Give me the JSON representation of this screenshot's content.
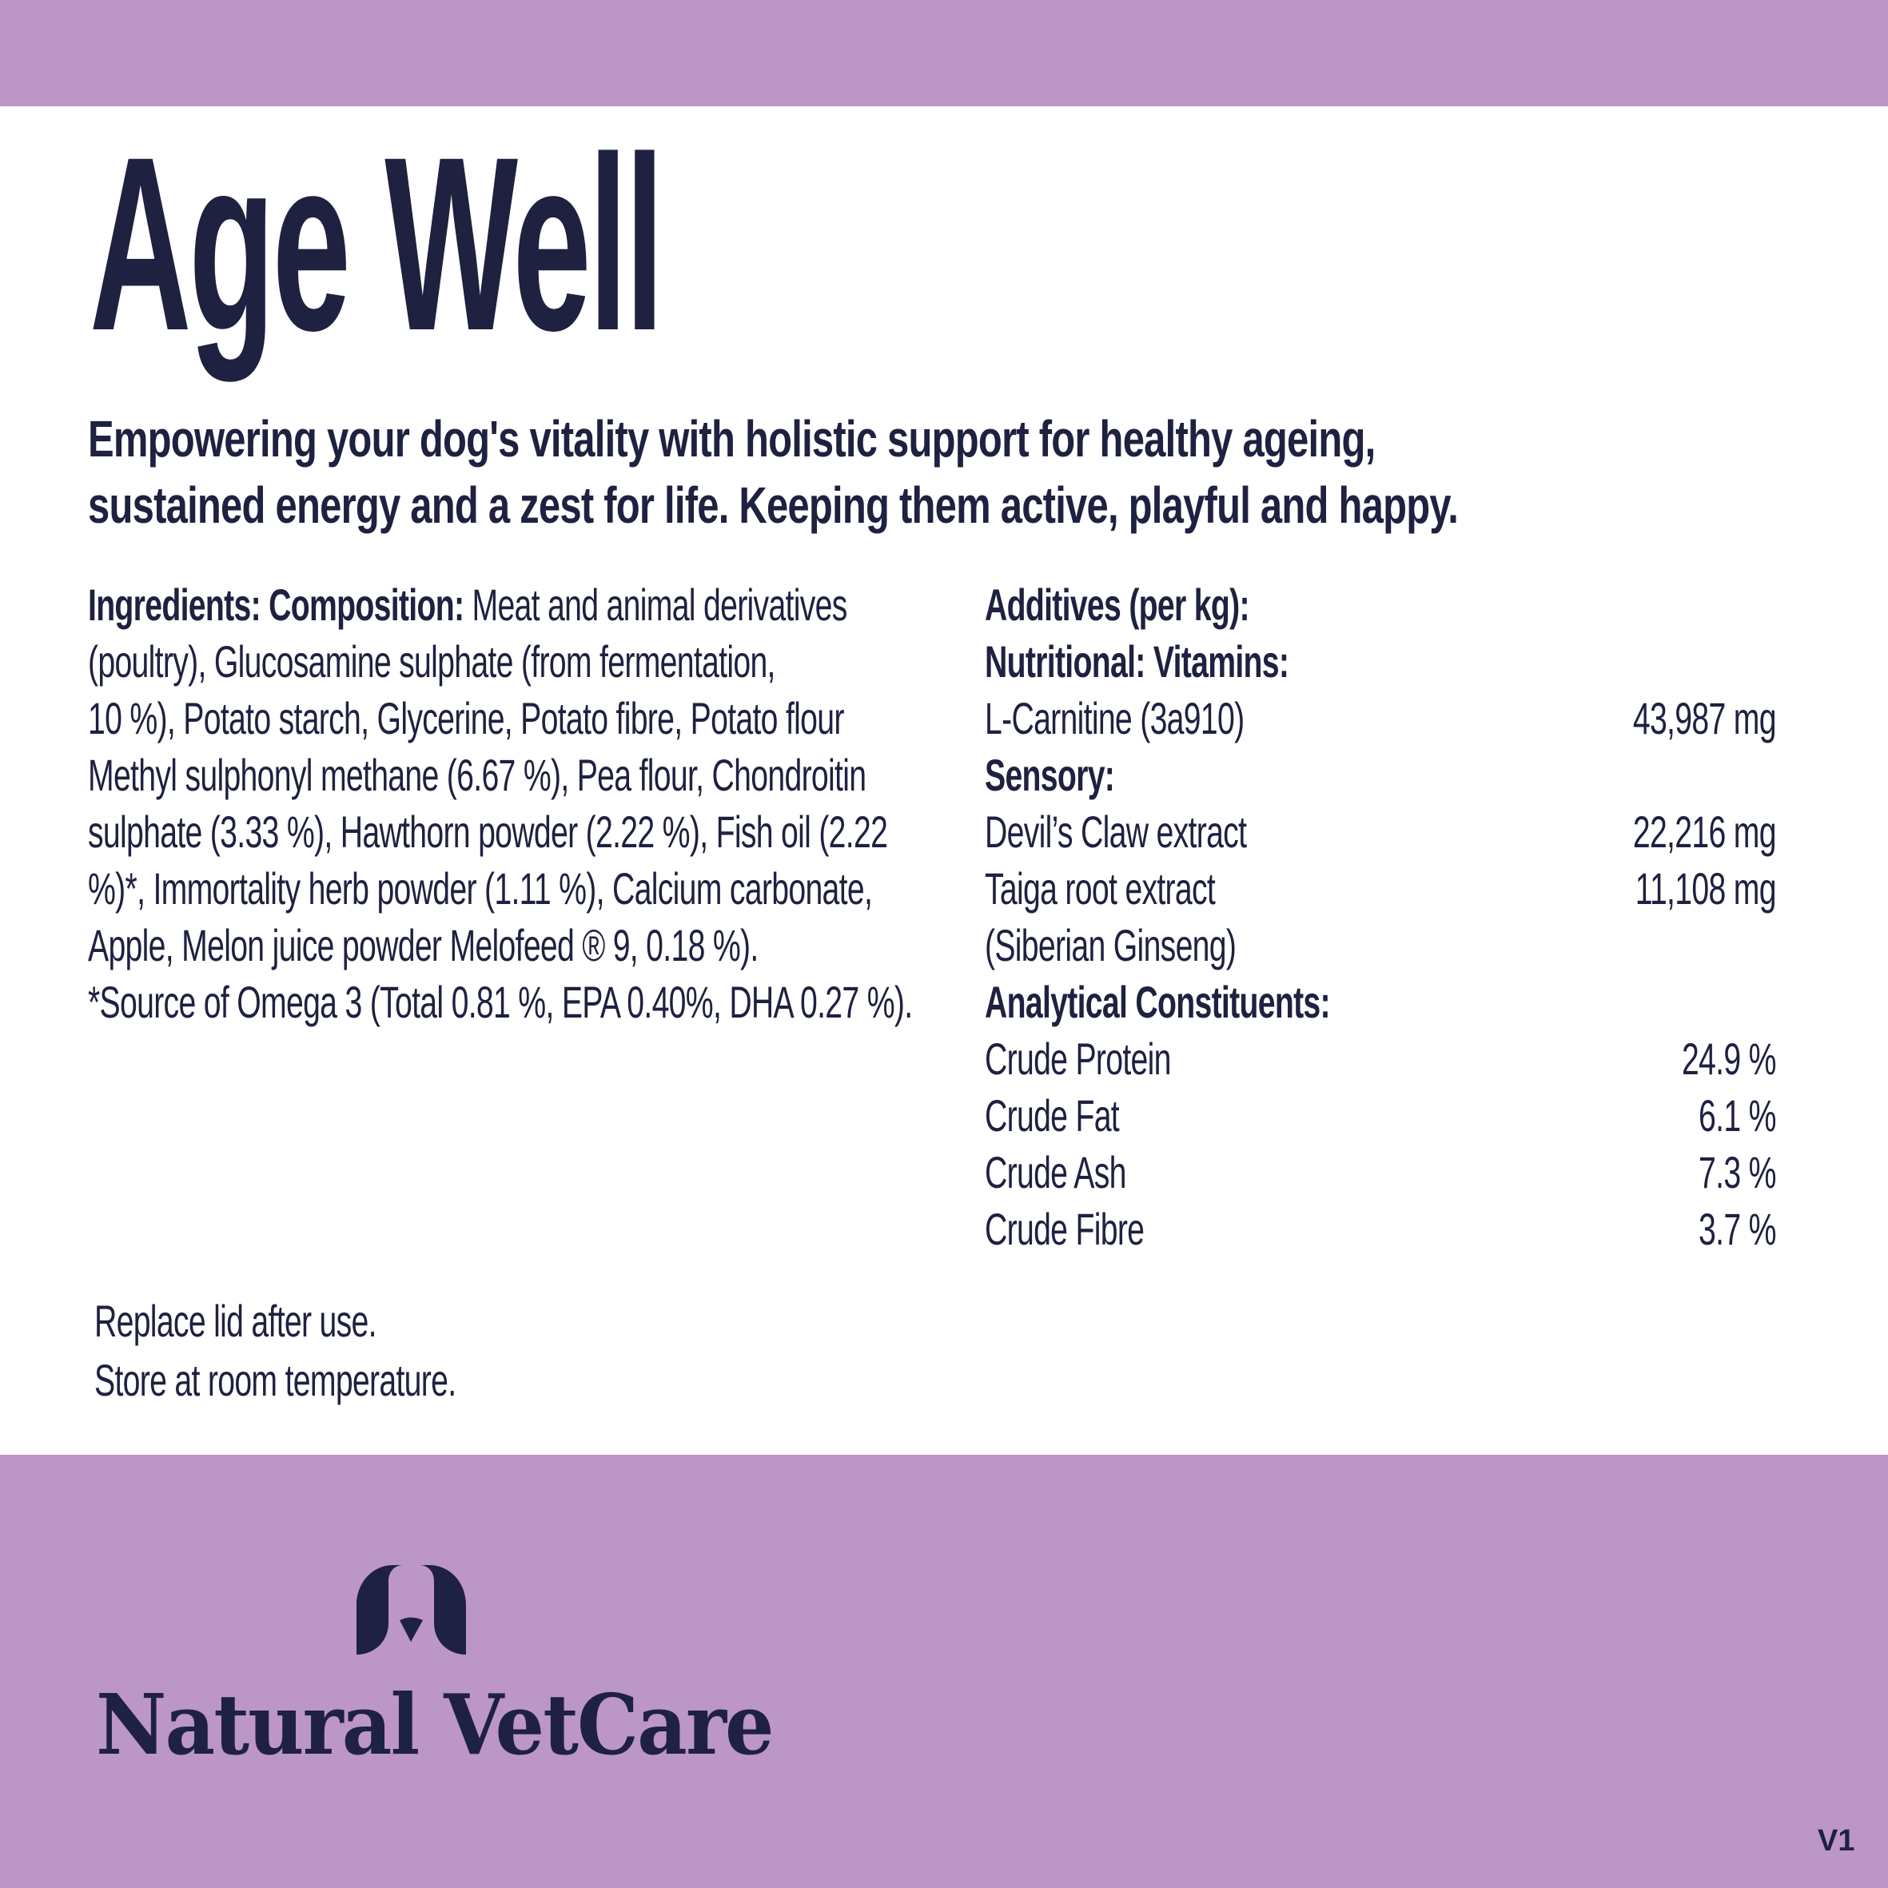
{
  "colors": {
    "band": "#bc96c7",
    "text": "#1e2140",
    "background": "#ffffff"
  },
  "title": "Age Well",
  "subtitle": [
    "Empowering your dog's vitality with holistic support for healthy ageing,",
    "sustained energy and a zest for life. Keeping them active, playful and happy."
  ],
  "ingredients": {
    "label": "Ingredients: Composition:",
    "lines": [
      " Meat and animal derivatives",
      "(poultry), Glucosamine sulphate (from fermentation,",
      "10 %), Potato starch, Glycerine, Potato fibre, Potato flour",
      "Methyl sulphonyl methane (6.67 %), Pea flour, Chondroitin",
      "sulphate (3.33 %), Hawthorn powder (2.22 %), Fish oil (2.22",
      "%)*, Immortality herb powder (1.11 %), Calcium carbonate,",
      "Apple, Melon juice powder Melofeed ® 9, 0.18 %).",
      "*Source of Omega 3 (Total 0.81 %, EPA 0.40%, DHA 0.27 %)."
    ]
  },
  "additives": [
    {
      "heading": "Additives (per kg):"
    },
    {
      "heading": "Nutritional: Vitamins:"
    },
    {
      "name": "L-Carnitine (3a910)",
      "value": "43,987 mg"
    },
    {
      "heading": "Sensory:"
    },
    {
      "name": "Devil’s Claw extract",
      "value": "22,216 mg"
    },
    {
      "name": "Taiga root extract",
      "value": "11,108 mg"
    },
    {
      "name": "(Siberian Ginseng)",
      "value": ""
    },
    {
      "heading": "Analytical Constituents:"
    },
    {
      "name": "Crude Protein",
      "value": "24.9 %"
    },
    {
      "name": "Crude Fat",
      "value": "6.1 %"
    },
    {
      "name": "Crude Ash",
      "value": "7.3 %"
    },
    {
      "name": "Crude Fibre",
      "value": "3.7 %"
    }
  ],
  "care": [
    "Replace lid after use.",
    "Store at room temperature."
  ],
  "brand": {
    "name": "Natural VetCare",
    "icon": "dog-ears-logo-icon"
  },
  "version": "V1"
}
